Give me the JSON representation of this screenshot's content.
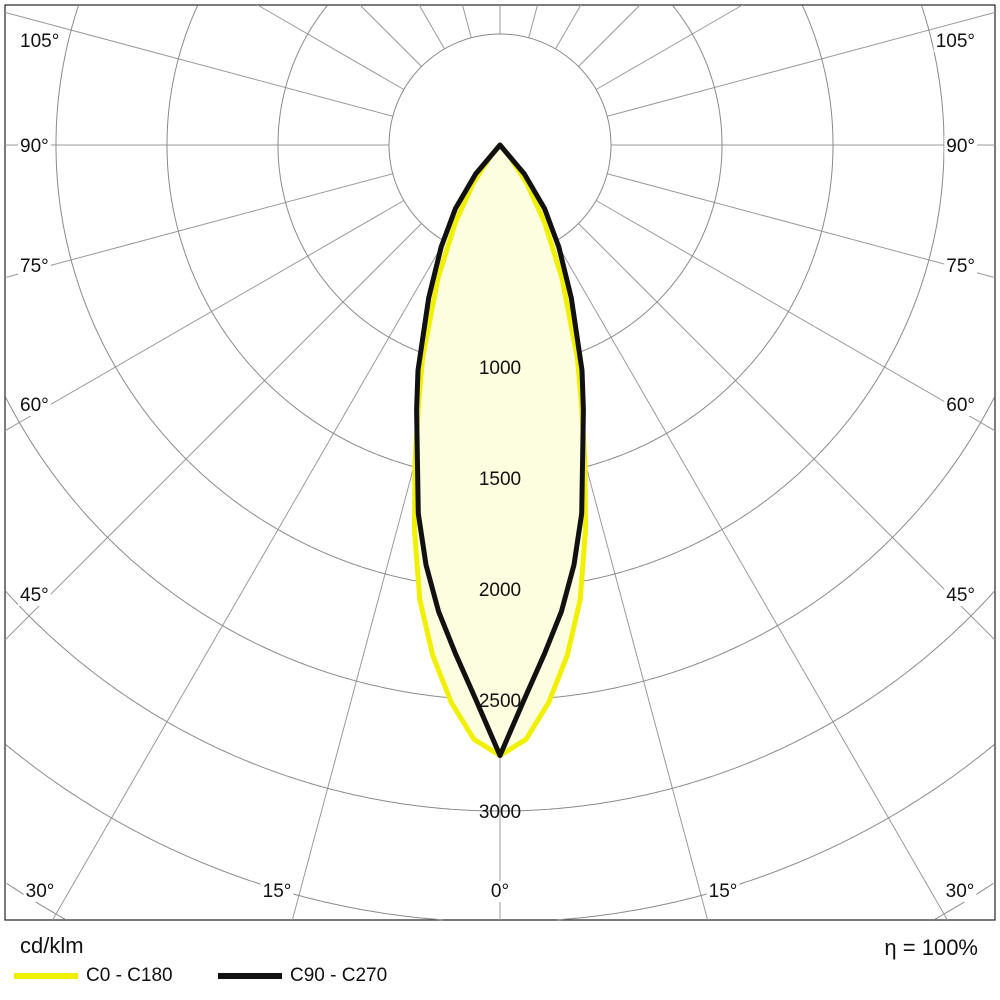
{
  "chart_data": {
    "type": "polar",
    "unit_label": "cd/klm",
    "efficiency_label": "η = 100%",
    "radial_ticks": [
      1000,
      1500,
      2000,
      2500,
      3000
    ],
    "radial_grid_step": 500,
    "angle_grid_step_deg": 15,
    "angle_labels_left": [
      "105°",
      "90°",
      "75°",
      "60°",
      "45°"
    ],
    "angle_labels_bottom": [
      "30°",
      "15°",
      "0°",
      "15°",
      "30°"
    ],
    "angle_labels_right": [
      "105°",
      "90°",
      "75°",
      "60°",
      "45°"
    ],
    "grid": true,
    "legend_position": "bottom",
    "series": [
      {
        "name": "C0 - C180",
        "color": "#f0f000",
        "angles_deg": [
          0,
          2.5,
          5,
          7.5,
          10,
          12.5,
          15,
          17.5,
          20,
          25,
          30,
          35,
          40,
          45,
          90
        ],
        "values": [
          2750,
          2680,
          2520,
          2320,
          2080,
          1780,
          1480,
          1220,
          1020,
          660,
          400,
          210,
          70,
          0,
          0
        ]
      },
      {
        "name": "C90 - C270",
        "color": "#111111",
        "angles_deg": [
          0,
          2.5,
          5,
          7.5,
          10,
          12.5,
          15,
          17.5,
          20,
          25,
          30,
          35,
          40,
          45,
          90
        ],
        "values": [
          2750,
          2500,
          2300,
          2120,
          1920,
          1700,
          1440,
          1250,
          1080,
          760,
          530,
          350,
          170,
          0,
          0
        ]
      }
    ],
    "fill_color": "#fdfde0"
  }
}
